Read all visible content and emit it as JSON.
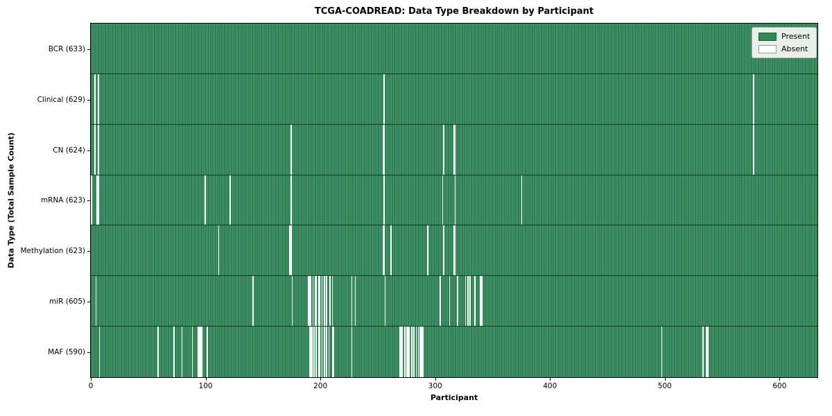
{
  "title": "TCGA-COADREAD: Data Type Breakdown by Participant",
  "xlabel": "Participant",
  "ylabel": "Data Type (Total Sample Count)",
  "legend": {
    "present_label": "Present",
    "absent_label": "Absent"
  },
  "colors": {
    "present_fill": "#449969",
    "present_edge": "#1d5e40",
    "absent": "#fafafa",
    "row_divider": "#12351f",
    "legend_bg": "#e9efe9",
    "legend_border": "#b5b5b5",
    "legend_present_swatch": "#2e8b57",
    "legend_absent_swatch": "#ffffff",
    "swatch_edge": "#9a9a9a"
  },
  "chart_data": {
    "type": "heatmap",
    "title": "TCGA-COADREAD: Data Type Breakdown by Participant",
    "xlabel": "Participant",
    "ylabel": "Data Type (Total Sample Count)",
    "legend_entries": [
      "Present",
      "Absent"
    ],
    "legend_position": "upper right",
    "grid": false,
    "total_participants": 633,
    "xlim": [
      0,
      633
    ],
    "x_ticks": [
      0,
      100,
      200,
      300,
      400,
      500,
      600
    ],
    "rows": [
      {
        "data_type": "BCR",
        "label": "BCR (633)",
        "present_count": 633,
        "absent_participants": []
      },
      {
        "data_type": "Clinical",
        "label": "Clinical (629)",
        "present_count": 629,
        "absent_participants": [
          3,
          6,
          255,
          577
        ]
      },
      {
        "data_type": "CN",
        "label": "CN (624)",
        "present_count": 624,
        "absent_participants": [
          3,
          6,
          174,
          254,
          255,
          307,
          316,
          317,
          577
        ]
      },
      {
        "data_type": "mRNA",
        "label": "mRNA (623)",
        "present_count": 623,
        "absent_participants": [
          0,
          5,
          6,
          99,
          121,
          174,
          255,
          306,
          317,
          375
        ]
      },
      {
        "data_type": "Methylation",
        "label": "Methylation (623)",
        "present_count": 623,
        "absent_participants": [
          111,
          173,
          174,
          254,
          255,
          261,
          293,
          307,
          316,
          317
        ]
      },
      {
        "data_type": "miR",
        "label": "miR (605)",
        "present_count": 605,
        "absent_participants": [
          4,
          141,
          175,
          189,
          190,
          191,
          193,
          195,
          196,
          198,
          199,
          201,
          203,
          205,
          208,
          210,
          227,
          230,
          256,
          304,
          312,
          319,
          326,
          328,
          330,
          334,
          339,
          340
        ]
      },
      {
        "data_type": "MAF",
        "label": "MAF (590)",
        "present_count": 590,
        "absent_participants": [
          7,
          58,
          72,
          79,
          88,
          93,
          94,
          95,
          96,
          101,
          190,
          191,
          192,
          194,
          196,
          198,
          199,
          201,
          203,
          205,
          207,
          210,
          211,
          227,
          269,
          270,
          271,
          273,
          275,
          276,
          277,
          279,
          281,
          283,
          285,
          286,
          287,
          288,
          289,
          497,
          533,
          536,
          537
        ]
      }
    ]
  }
}
